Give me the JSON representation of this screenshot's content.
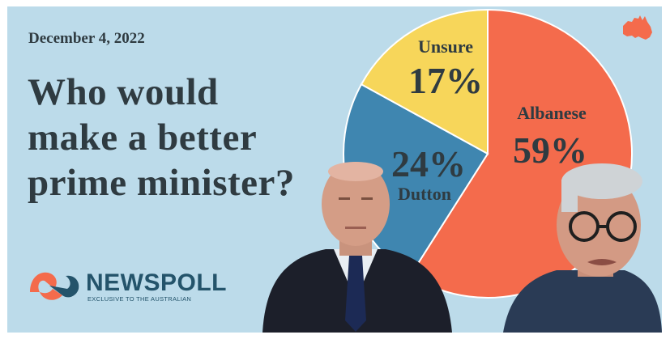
{
  "date": "December 4, 2022",
  "headline": [
    "Who would",
    "make a better",
    "prime minister?"
  ],
  "brand": {
    "name": "NEWSPOLL",
    "tagline": "EXCLUSIVE TO THE AUSTRALIAN"
  },
  "colors": {
    "background": "#bcdbea",
    "albanese": "#f46b4c",
    "dutton": "#3f86b0",
    "unsure": "#f7d65a",
    "text": "#2f3b41",
    "brand": "#24546b",
    "logo_accent": "#f46b4c"
  },
  "icons": [
    "australia-map-icon",
    "newspoll-logo-icon"
  ],
  "chart_data": {
    "type": "pie",
    "start_angle_deg": 0,
    "direction": "clockwise",
    "slices": [
      {
        "name": "Albanese",
        "value": 59,
        "label": "59%",
        "color": "#f46b4c"
      },
      {
        "name": "Dutton",
        "value": 24,
        "label": "24%",
        "color": "#3f86b0"
      },
      {
        "name": "Unsure",
        "value": 17,
        "label": "17%",
        "color": "#f7d65a"
      }
    ],
    "title": "Who would make a better prime minister?"
  }
}
